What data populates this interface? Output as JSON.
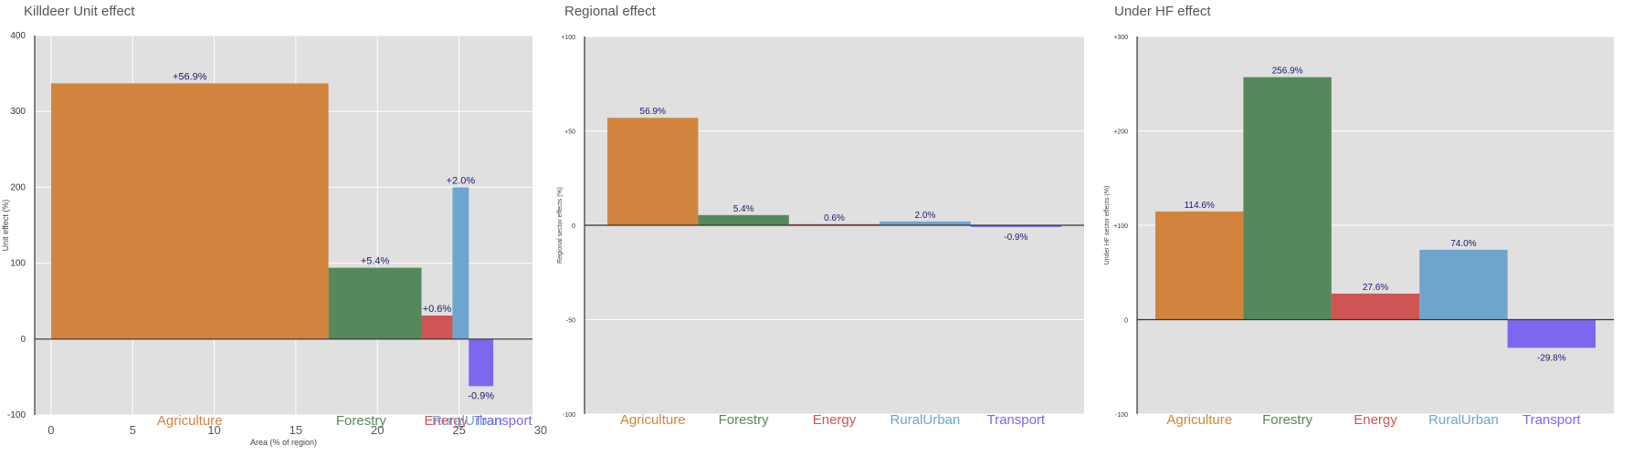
{
  "colors": {
    "panel_bg": "#e0e0e0",
    "grid": "#ffffff",
    "value_label": "#1a1a6e",
    "Agriculture": "#d2843e",
    "Forestry": "#55885a",
    "Energy": "#cf5454",
    "RuralUrban": "#6ea5cf",
    "Transport": "#7b68ee"
  },
  "chart_data": [
    {
      "type": "bar",
      "title": "Killdeer Unit effect",
      "xlabel": "Area (% of region)",
      "ylabel": "Unit effect (%)",
      "xlim": [
        -1,
        29.5
      ],
      "xticks": [
        0,
        5,
        10,
        15,
        20,
        25,
        30
      ],
      "ylim": [
        -100,
        400
      ],
      "yticks": [
        -100,
        0,
        100,
        200,
        300,
        400
      ],
      "ytick_labels": [
        "-100",
        "0",
        "100",
        "200",
        "300",
        "400"
      ],
      "categories": [
        "Agriculture",
        "Forestry",
        "Energy",
        "RuralUrban",
        "Transport"
      ],
      "x_start": [
        0,
        17.0,
        22.7,
        24.6,
        25.6
      ],
      "width": [
        17.0,
        5.7,
        1.9,
        1.0,
        1.5
      ],
      "values": [
        337,
        94,
        31,
        200,
        -62
      ],
      "data_labels": [
        "+56.9%",
        "+5.4%",
        "+0.6%",
        "+2.0%",
        "-0.9%"
      ],
      "category_label_x": [
        8.5,
        19.0,
        24.2,
        25.5,
        27.7
      ]
    },
    {
      "type": "bar",
      "title": "Regional effect",
      "xlabel": "",
      "ylabel": "Regional sector effects (%)",
      "ylim": [
        -100,
        100
      ],
      "yticks": [
        -100,
        -50,
        0,
        50,
        100
      ],
      "ytick_labels": [
        "-100",
        "-50",
        "0",
        "+50",
        "+100"
      ],
      "categories": [
        "Agriculture",
        "Forestry",
        "Energy",
        "RuralUrban",
        "Transport"
      ],
      "values": [
        56.9,
        5.4,
        0.6,
        2.0,
        -0.9
      ],
      "data_labels": [
        "56.9%",
        "5.4%",
        "0.6%",
        "2.0%",
        "-0.9%"
      ]
    },
    {
      "type": "bar",
      "title": "Under HF effect",
      "xlabel": "",
      "ylabel": "Under HF sector effects (%)",
      "ylim": [
        -100,
        300
      ],
      "yticks": [
        -100,
        0,
        100,
        200,
        300
      ],
      "ytick_labels": [
        "-100",
        "0",
        "+100",
        "+200",
        "+300"
      ],
      "categories": [
        "Agriculture",
        "Forestry",
        "Energy",
        "RuralUrban",
        "Transport"
      ],
      "values": [
        114.6,
        256.9,
        27.6,
        74.0,
        -29.8
      ],
      "data_labels": [
        "114.6%",
        "256.9%",
        "27.6%",
        "74.0%",
        "-29.8%"
      ]
    }
  ]
}
